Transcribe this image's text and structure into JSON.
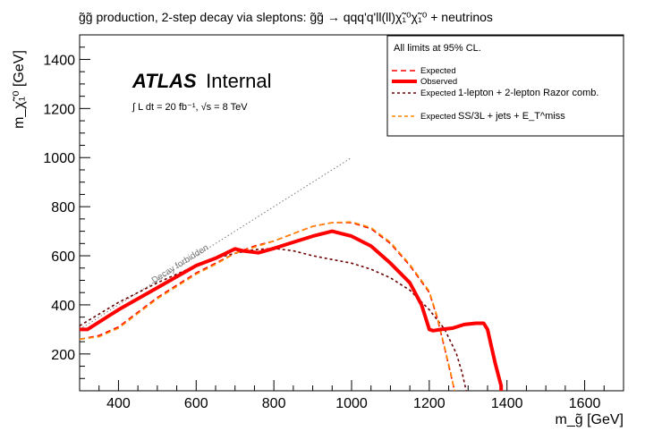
{
  "chart_data": {
    "type": "line",
    "title": "g̃g̃ production, 2-step decay via sleptons: g̃g̃ → qqq'q'll(ll)χ̃₁⁰χ̃₁⁰ + neutrinos",
    "xlabel": "m_g̃ [GeV]",
    "ylabel": "m_χ̃₁⁰ [GeV]",
    "xlim": [
      300,
      1700
    ],
    "ylim": [
      50,
      1500
    ],
    "x_ticks": [
      400,
      600,
      800,
      1000,
      1200,
      1400,
      1600
    ],
    "y_ticks": [
      200,
      400,
      600,
      800,
      1000,
      1200,
      1400
    ],
    "experiment": "ATLAS",
    "experiment_status": "Internal",
    "luminosity_text": "∫ L dt = 20 fb⁻¹, √s = 8 TeV",
    "diagonal_annotation": "Decay forbidden",
    "legend": {
      "header": "All limits at 95% CL.",
      "entries": [
        {
          "key": "expected",
          "label": "Expected",
          "extra": ""
        },
        {
          "key": "observed",
          "label": "Observed",
          "extra": ""
        },
        {
          "key": "razor_expected",
          "label": "Expected",
          "extra": "1-lepton + 2-lepton Razor comb."
        },
        {
          "key": "ss3l_expected",
          "label": "Expected",
          "extra": "SS/3L + jets + E_T^miss"
        }
      ]
    },
    "series": [
      {
        "key": "diagonal",
        "color": "#777777",
        "style": "dotted",
        "x": [
          300,
          1000
        ],
        "y": [
          300,
          1000
        ]
      },
      {
        "key": "observed",
        "name": "Observed",
        "color": "#ff0000",
        "style": "solid-thick",
        "x": [
          300,
          320,
          400,
          500,
          600,
          650,
          700,
          720,
          760,
          800,
          850,
          900,
          950,
          1000,
          1050,
          1100,
          1150,
          1180,
          1200,
          1210,
          1230,
          1260,
          1290,
          1320,
          1340,
          1350,
          1360,
          1370,
          1380,
          1385,
          1385
        ],
        "y": [
          300,
          300,
          380,
          470,
          560,
          590,
          628,
          620,
          612,
          630,
          655,
          680,
          700,
          680,
          640,
          570,
          490,
          400,
          300,
          295,
          300,
          305,
          320,
          325,
          325,
          300,
          230,
          160,
          100,
          70,
          50
        ]
      },
      {
        "key": "expected",
        "name": "Expected",
        "color": "#ff0000",
        "style": "dashed",
        "x": [
          300,
          350,
          400,
          500,
          600,
          650,
          700,
          750,
          800,
          850,
          900,
          950,
          1000,
          1050,
          1100,
          1150,
          1200,
          1220,
          1240,
          1255,
          1265
        ],
        "y": [
          260,
          275,
          310,
          430,
          530,
          570,
          610,
          640,
          660,
          690,
          720,
          735,
          735,
          710,
          650,
          560,
          450,
          350,
          220,
          120,
          50
        ]
      },
      {
        "key": "ss3l_expected",
        "name": "Expected",
        "color": "#ff8800",
        "style": "dashed",
        "x": [
          300,
          350,
          400,
          500,
          600,
          650,
          700,
          750,
          800,
          850,
          900,
          950,
          1000,
          1050,
          1100,
          1150,
          1200,
          1220,
          1240,
          1255,
          1265
        ],
        "y": [
          260,
          270,
          305,
          425,
          525,
          565,
          610,
          635,
          660,
          690,
          720,
          735,
          738,
          715,
          655,
          565,
          455,
          355,
          225,
          125,
          50
        ]
      },
      {
        "key": "razor_expected",
        "name": "Expected",
        "color": "#6a0000",
        "style": "dashed-fine",
        "x": [
          300,
          400,
          500,
          600,
          650,
          700,
          750,
          800,
          850,
          900,
          950,
          1000,
          1050,
          1100,
          1150,
          1200,
          1240,
          1270,
          1285,
          1295
        ],
        "y": [
          315,
          410,
          490,
          560,
          590,
          610,
          625,
          630,
          620,
          600,
          585,
          570,
          545,
          510,
          460,
          380,
          300,
          200,
          120,
          50
        ]
      }
    ]
  }
}
